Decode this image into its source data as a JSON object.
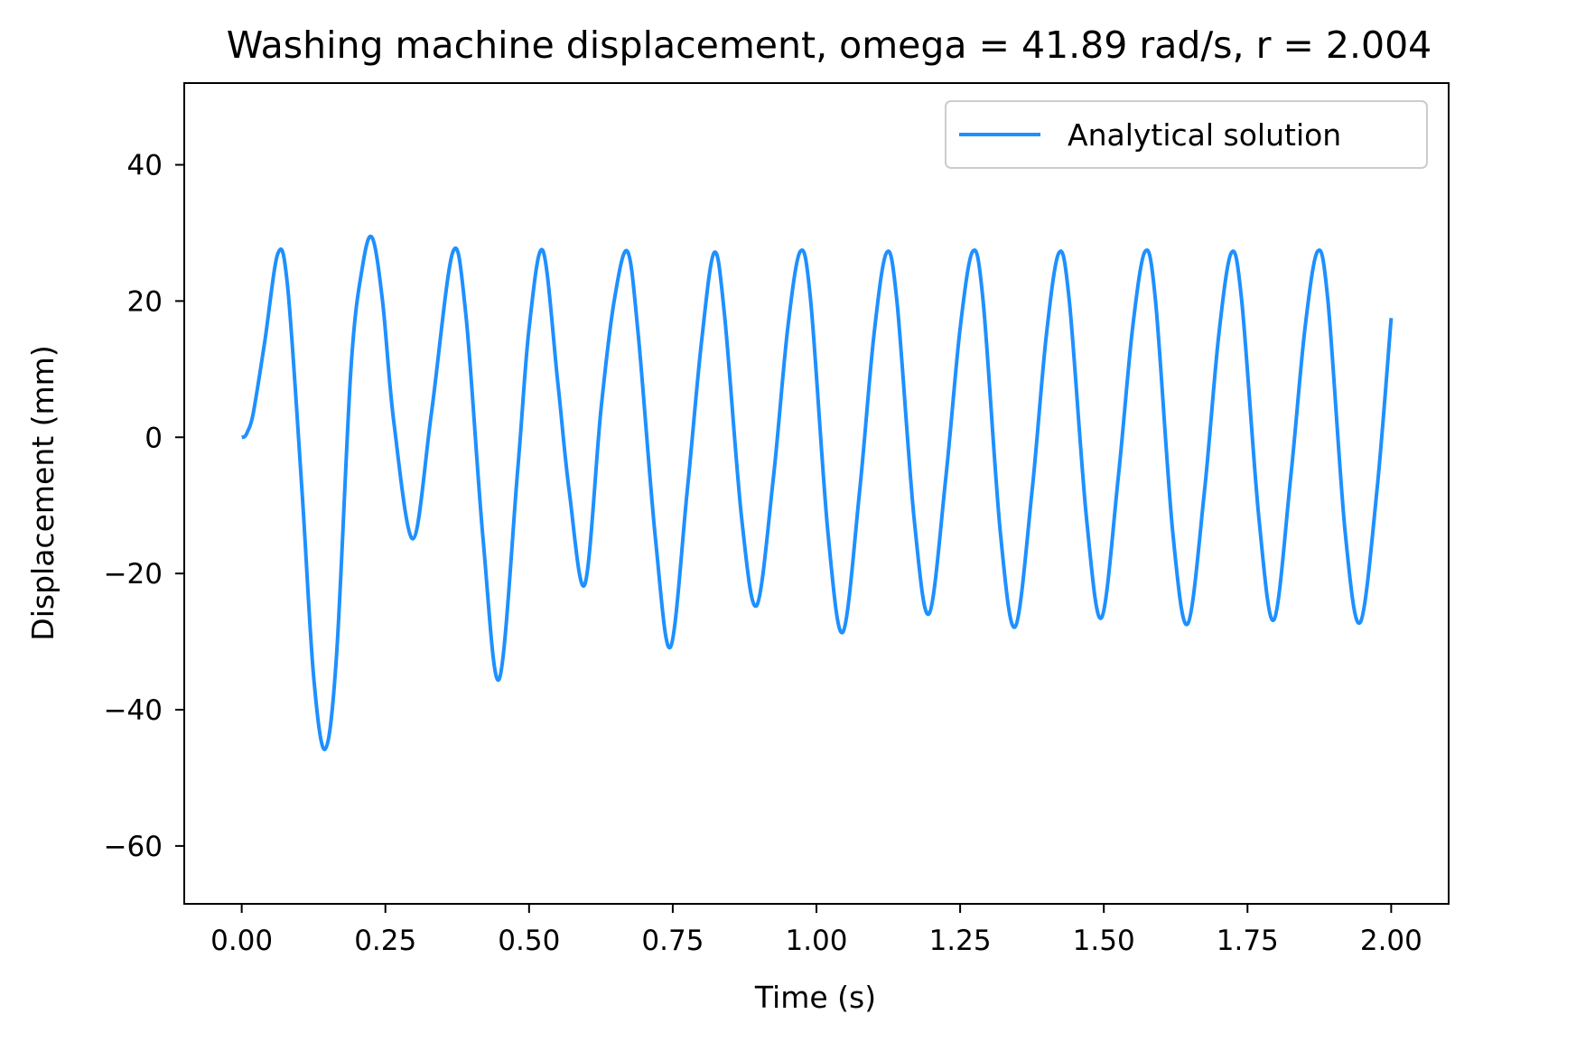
{
  "chart_data": {
    "type": "line",
    "title": "Washing machine displacement, omega = 41.89 rad/s, r = 2.004",
    "xlabel": "Time (s)",
    "ylabel": "Displacement (mm)",
    "xlim": [
      -0.1,
      2.1
    ],
    "ylim": [
      -68.5,
      52
    ],
    "x_ticks": [
      0.0,
      0.25,
      0.5,
      0.75,
      1.0,
      1.25,
      1.5,
      1.75,
      2.0
    ],
    "x_tick_labels": [
      "0.00",
      "0.25",
      "0.50",
      "0.75",
      "1.00",
      "1.25",
      "1.50",
      "1.75",
      "2.00"
    ],
    "y_ticks": [
      40,
      20,
      0,
      -20,
      -40,
      -60
    ],
    "y_tick_labels": [
      "40",
      "20",
      "0",
      "−20",
      "−40",
      "−60"
    ],
    "grid": false,
    "legend_position": "upper-right",
    "series": [
      {
        "name": "Analytical solution",
        "color": "#1e90ff",
        "x": [
          0.0,
          0.005,
          0.01,
          0.02,
          0.04,
          0.063,
          0.08,
          0.105,
          0.125,
          0.145,
          0.165,
          0.19,
          0.21,
          0.227,
          0.245,
          0.265,
          0.298,
          0.33,
          0.367,
          0.39,
          0.42,
          0.448,
          0.48,
          0.5,
          0.524,
          0.55,
          0.57,
          0.597,
          0.625,
          0.648,
          0.671,
          0.69,
          0.72,
          0.746,
          0.775,
          0.8,
          0.822,
          0.84,
          0.87,
          0.896,
          0.925,
          0.95,
          0.972,
          0.99,
          1.02,
          1.046,
          1.075,
          1.1,
          1.122,
          1.14,
          1.17,
          1.196,
          1.225,
          1.25,
          1.272,
          1.29,
          1.32,
          1.346,
          1.375,
          1.4,
          1.422,
          1.44,
          1.47,
          1.496,
          1.525,
          1.55,
          1.572,
          1.59,
          1.62,
          1.646,
          1.675,
          1.7,
          1.722,
          1.74,
          1.77,
          1.796,
          1.825,
          1.85,
          1.872,
          1.89,
          1.92,
          1.946,
          1.975,
          2.0
        ],
        "y": [
          0.0,
          0.1,
          0.8,
          3.5,
          14.0,
          27.0,
          22.0,
          -8.0,
          -35.0,
          -45.8,
          -32.0,
          10.0,
          25.0,
          29.3,
          20.0,
          2.0,
          -14.9,
          3.5,
          27.1,
          18.0,
          -15.0,
          -35.5,
          -5.0,
          16.0,
          27.4,
          8.0,
          -8.0,
          -21.6,
          4.0,
          20.0,
          27.3,
          15.0,
          -15.0,
          -30.8,
          -8.0,
          14.0,
          27.1,
          18.0,
          -12.0,
          -24.7,
          -6.0,
          16.0,
          27.3,
          20.0,
          -14.0,
          -28.6,
          -8.0,
          15.0,
          27.1,
          20.0,
          -12.0,
          -25.9,
          -6.0,
          16.0,
          27.3,
          20.0,
          -14.0,
          -27.8,
          -8.0,
          15.0,
          27.1,
          20.0,
          -12.0,
          -26.5,
          -6.0,
          16.0,
          27.3,
          20.0,
          -14.0,
          -27.4,
          -8.0,
          15.0,
          27.1,
          20.0,
          -12.0,
          -26.8,
          -6.0,
          16.0,
          27.3,
          20.0,
          -14.0,
          -27.2,
          -8.0,
          17.5
        ]
      }
    ]
  }
}
